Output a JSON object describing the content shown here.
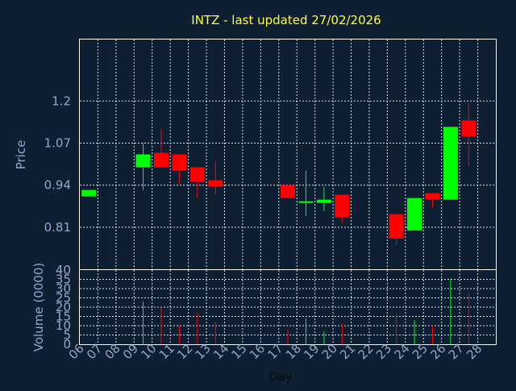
{
  "chart_data": [
    {
      "type": "candlestick",
      "title": "INTZ - last updated 27/02/2026",
      "ylabel": "Price",
      "ylim": [
        0.68,
        1.39
      ],
      "yticks": [
        0.81,
        0.94,
        1.07,
        1.2
      ],
      "ytick_labels": [
        "0.81",
        "0.94",
        "1.07",
        "1.2"
      ],
      "grid": true,
      "up_color": "#00ff00",
      "down_color": "#ff0000",
      "candles": [
        {
          "day": "06",
          "open": 0.905,
          "high": 0.925,
          "low": 0.905,
          "close": 0.925
        },
        {
          "day": "09",
          "open": 0.995,
          "high": 1.07,
          "low": 0.925,
          "close": 1.035
        },
        {
          "day": "10",
          "open": 1.04,
          "high": 1.115,
          "low": 0.995,
          "close": 0.995
        },
        {
          "day": "11",
          "open": 1.035,
          "high": 1.035,
          "low": 0.945,
          "close": 0.985
        },
        {
          "day": "12",
          "open": 0.995,
          "high": 0.995,
          "low": 0.9,
          "close": 0.95
        },
        {
          "day": "13",
          "open": 0.955,
          "high": 1.015,
          "low": 0.91,
          "close": 0.935
        },
        {
          "day": "17",
          "open": 0.94,
          "high": 0.94,
          "low": 0.9,
          "close": 0.9
        },
        {
          "day": "18",
          "open": 0.885,
          "high": 0.985,
          "low": 0.845,
          "close": 0.89
        },
        {
          "day": "19",
          "open": 0.885,
          "high": 0.935,
          "low": 0.86,
          "close": 0.895
        },
        {
          "day": "20",
          "open": 0.91,
          "high": 0.91,
          "low": 0.825,
          "close": 0.84
        },
        {
          "day": "23",
          "open": 0.85,
          "high": 0.85,
          "low": 0.755,
          "close": 0.775
        },
        {
          "day": "24",
          "open": 0.8,
          "high": 0.9,
          "low": 0.8,
          "close": 0.9
        },
        {
          "day": "25",
          "open": 0.915,
          "high": 0.915,
          "low": 0.87,
          "close": 0.895
        },
        {
          "day": "26",
          "open": 0.895,
          "high": 1.12,
          "low": 0.895,
          "close": 1.12
        },
        {
          "day": "27",
          "open": 1.14,
          "high": 1.195,
          "low": 1.0,
          "close": 1.09
        }
      ]
    },
    {
      "type": "bar",
      "xlabel": "Day",
      "ylabel": "Volume (0000)",
      "ylim": [
        0,
        40
      ],
      "yticks": [
        0,
        5,
        10,
        15,
        20,
        25,
        30,
        35,
        40
      ],
      "ytick_labels": [
        "0",
        "5",
        "10",
        "15",
        "20",
        "25",
        "30",
        "35",
        "40"
      ],
      "grid": true,
      "categories": [
        "06",
        "07",
        "08",
        "09",
        "10",
        "11",
        "12",
        "13",
        "14",
        "15",
        "16",
        "17",
        "18",
        "19",
        "20",
        "21",
        "22",
        "23",
        "24",
        "25",
        "26",
        "27",
        "28"
      ],
      "values": [
        0,
        0,
        0,
        23,
        20,
        10,
        17,
        12,
        0,
        0,
        0,
        8,
        14,
        7,
        11,
        0,
        0,
        16,
        13,
        10,
        35,
        27,
        0
      ],
      "colors": [
        "",
        "",
        "",
        "#00ff00",
        "#ff0000",
        "#ff0000",
        "#ff0000",
        "#ff0000",
        "",
        "",
        "",
        "#ff0000",
        "#00ff00",
        "#00ff00",
        "#ff0000",
        "",
        "",
        "#ff0000",
        "#00ff00",
        "#ff0000",
        "#00ff00",
        "#ff0000",
        ""
      ]
    }
  ]
}
